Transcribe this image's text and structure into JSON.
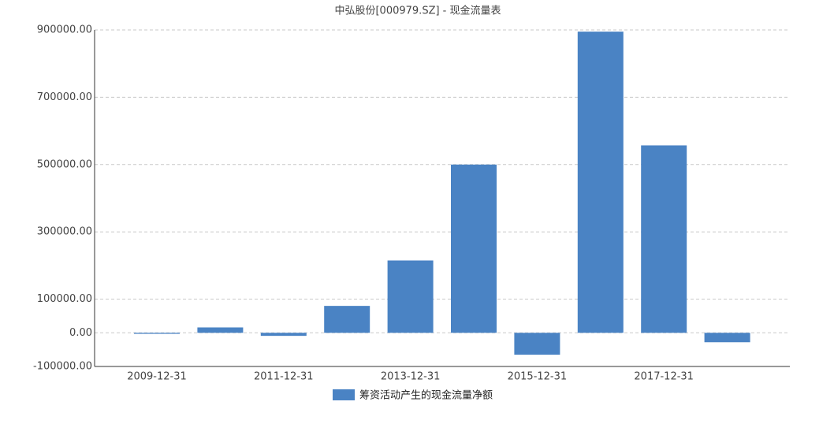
{
  "chart_data": {
    "type": "bar",
    "title": "中弘股份[000979.SZ] - 现金流量表",
    "categories": [
      "2009-12-31",
      null,
      "2011-12-31",
      null,
      "2013-12-31",
      null,
      "2015-12-31",
      null,
      "2017-12-31",
      null
    ],
    "series": [
      {
        "name": "筹资活动产生的现金流量净额",
        "color": "#4a83c4",
        "values": [
          -3000,
          16000,
          -9000,
          80000,
          215000,
          500000,
          -65000,
          895000,
          557000,
          -28000
        ]
      }
    ],
    "ylim": [
      -100000,
      900000
    ],
    "yticks": [
      {
        "value": -100000,
        "label": "-100000.00"
      },
      {
        "value": 0,
        "label": "0.00"
      },
      {
        "value": 100000,
        "label": "100000.00"
      },
      {
        "value": 300000,
        "label": "300000.00"
      },
      {
        "value": 500000,
        "label": "500000.00"
      },
      {
        "value": 700000,
        "label": "700000.00"
      },
      {
        "value": 900000,
        "label": "900000.00"
      }
    ],
    "grid": true
  }
}
